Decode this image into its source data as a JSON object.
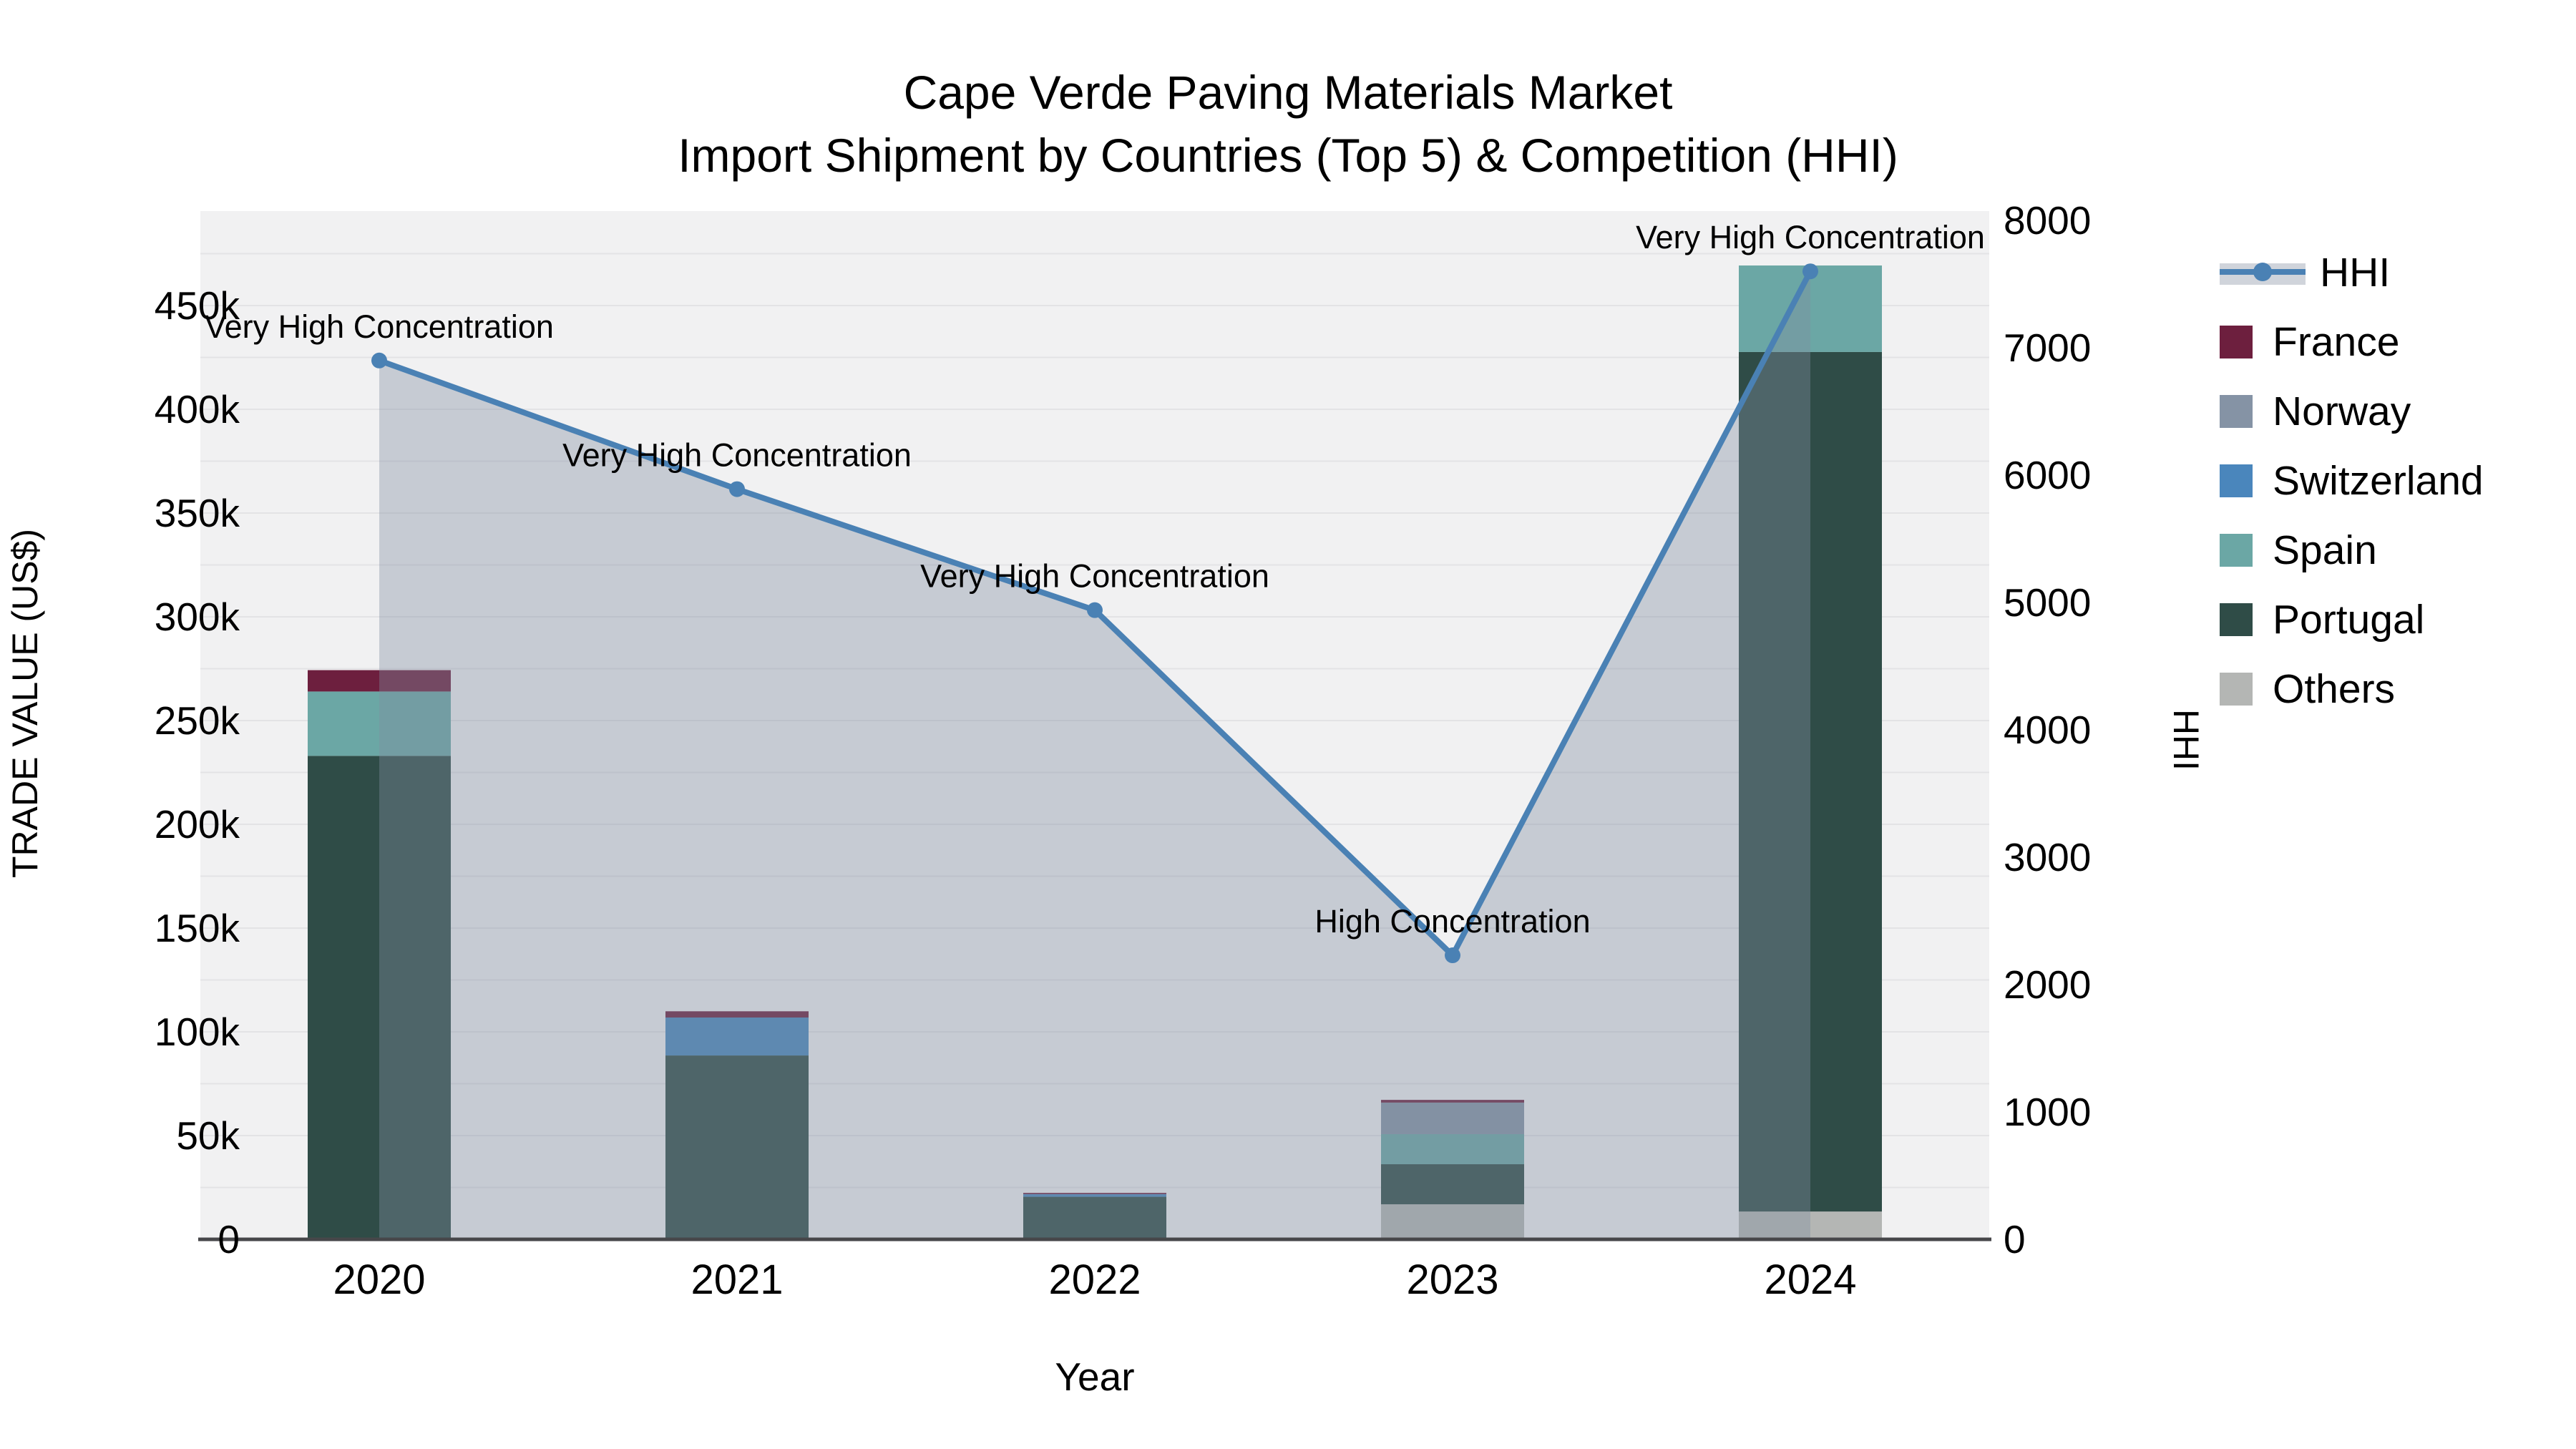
{
  "title": {
    "line1": "Cape Verde Paving Materials Market",
    "line2": "Import Shipment by Countries (Top 5) & Competition (HHI)"
  },
  "y_left_axis": {
    "title": "TRADE VALUE (US$)",
    "tick_labels": [
      "0",
      "50k",
      "100k",
      "150k",
      "200k",
      "250k",
      "300k",
      "350k",
      "400k",
      "450k"
    ],
    "tick_values_k": [
      0,
      50,
      100,
      150,
      200,
      250,
      300,
      350,
      400,
      450
    ]
  },
  "y_right_axis": {
    "title": "HHI",
    "tick_labels": [
      "0",
      "1000",
      "2000",
      "3000",
      "4000",
      "5000",
      "6000",
      "7000",
      "8000"
    ],
    "tick_values": [
      0,
      1000,
      2000,
      3000,
      4000,
      5000,
      6000,
      7000,
      8000
    ]
  },
  "x_axis": {
    "title": "Year",
    "tick_labels": [
      "2020",
      "2021",
      "2022",
      "2023",
      "2024"
    ]
  },
  "legend": {
    "items": [
      {
        "label": "HHI",
        "type": "line",
        "color": "#4a81b4"
      },
      {
        "label": "France",
        "type": "bar",
        "color": "#6d1f3e"
      },
      {
        "label": "Norway",
        "type": "bar",
        "color": "#8593a5"
      },
      {
        "label": "Switzerland",
        "type": "bar",
        "color": "#4a86bc"
      },
      {
        "label": "Spain",
        "type": "bar",
        "color": "#6ba7a5"
      },
      {
        "label": "Portugal",
        "type": "bar",
        "color": "#2f4c47"
      },
      {
        "label": "Others",
        "type": "bar",
        "color": "#b4b6b4"
      }
    ]
  },
  "colors": {
    "plot_bg": "#f1f1f2",
    "gridline": "#e3e3e5",
    "axis_line": "#47474a",
    "hhi_line": "#4a81b4",
    "hhi_area_fill": "rgba(130,143,161,0.38)",
    "legend_band": "#d0d4db"
  },
  "chart_data": {
    "type": "combo (stacked bar + line)",
    "categories": [
      "2020",
      "2021",
      "2022",
      "2023",
      "2024"
    ],
    "bar_value_unit": "thousand US$ (trade value, left axis)",
    "stack_order_note": "series listed bottom-to-top of stack",
    "series": [
      {
        "name": "Others",
        "type": "bar",
        "color": "#b4b6b4",
        "values": [
          0,
          0,
          0,
          16.9,
          13.4
        ]
      },
      {
        "name": "Portugal",
        "type": "bar",
        "color": "#2f4c47",
        "values": [
          233,
          88.6,
          20.5,
          19.3,
          414.2
        ]
      },
      {
        "name": "Spain",
        "type": "bar",
        "color": "#6ba7a5",
        "values": [
          31,
          0,
          0,
          14.5,
          41.7
        ]
      },
      {
        "name": "Switzerland",
        "type": "bar",
        "color": "#4a86bc",
        "values": [
          0,
          18.3,
          1.3,
          0,
          0
        ]
      },
      {
        "name": "Norway",
        "type": "bar",
        "color": "#8593a5",
        "values": [
          0,
          0,
          0,
          15.2,
          0
        ]
      },
      {
        "name": "France",
        "type": "bar",
        "color": "#6d1f3e",
        "values": [
          10.3,
          3,
          0.6,
          1.3,
          0
        ]
      }
    ],
    "bar_totals_k": [
      274.3,
      109.9,
      22.4,
      67.2,
      469.3
    ],
    "line_series": {
      "name": "HHI",
      "axis": "right",
      "color": "#4a81b4",
      "area_fill": "rgba(130,143,161,0.38)",
      "values": [
        6900,
        5890,
        4940,
        2230,
        7600
      ]
    },
    "annotations": [
      {
        "category": "2020",
        "text": "Very High Concentration"
      },
      {
        "category": "2021",
        "text": "Very High Concentration"
      },
      {
        "category": "2022",
        "text": "Very High Concentration"
      },
      {
        "category": "2023",
        "text": "High Concentration"
      },
      {
        "category": "2024",
        "text": "Very High Concentration"
      }
    ],
    "axis_ranges": {
      "y_left_thousand_usd": [
        0,
        495
      ],
      "y_right_hhi": [
        0,
        8075
      ]
    },
    "grid": true,
    "legend_position": "right"
  }
}
